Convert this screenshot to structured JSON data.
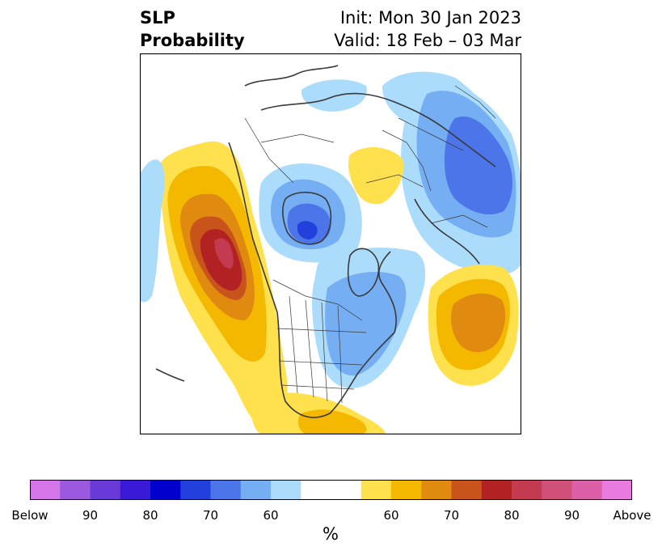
{
  "header": {
    "title_line1": "SLP",
    "title_line2": "Probability",
    "init_text": "Init: Mon 30 Jan 2023",
    "valid_text": "Valid: 18 Feb – 03 Mar"
  },
  "map": {
    "projection": "north-polar-stereographic",
    "region": "North America / North Pacific / Arctic",
    "features": [
      "coastlines",
      "country-borders",
      "us-state-borders",
      "canadian-province-borders"
    ],
    "anomalies": [
      {
        "area": "Gulf of Alaska / NE Pacific",
        "category": "Above",
        "peak_percent": 80
      },
      {
        "area": "Hudson Bay",
        "category": "Below",
        "peak_percent": 70
      },
      {
        "area": "Siberia / East Asia",
        "category": "Below",
        "peak_percent": 70
      },
      {
        "area": "North Atlantic (mid-latitude)",
        "category": "Above",
        "peak_percent": 70
      },
      {
        "area": "Western Russia / Scandinavia",
        "category": "Above",
        "peak_percent": 60
      },
      {
        "area": "Southeastern US / Gulf of Mexico",
        "category": "Above",
        "peak_percent": 60
      },
      {
        "area": "Eastern Canada / NW Atlantic",
        "category": "Below",
        "peak_percent": 60
      }
    ]
  },
  "colorbar": {
    "unit": "%",
    "colors": [
      "#d576e8",
      "#9b59e0",
      "#6a3ad8",
      "#3a1ad6",
      "#0000cc",
      "#2240db",
      "#4b75e8",
      "#75aef2",
      "#acdcfb",
      "#ffffff",
      "#ffe14d",
      "#f4b800",
      "#e08a10",
      "#c8541c",
      "#b22222",
      "#c43a50",
      "#d0507a",
      "#dc60a8",
      "#e97ae0"
    ],
    "weights": [
      1,
      1,
      1,
      1,
      1,
      1,
      1,
      1,
      1,
      2,
      1,
      1,
      1,
      1,
      1,
      1,
      1,
      1,
      1
    ],
    "ticks": [
      {
        "label": "Below",
        "boundary": 0
      },
      {
        "label": "90",
        "boundary": 2
      },
      {
        "label": "80",
        "boundary": 4
      },
      {
        "label": "70",
        "boundary": 6
      },
      {
        "label": "60",
        "boundary": 8
      },
      {
        "label": "60",
        "boundary": 12
      },
      {
        "label": "70",
        "boundary": 14
      },
      {
        "label": "80",
        "boundary": 16
      },
      {
        "label": "90",
        "boundary": 18
      },
      {
        "label": "Above",
        "boundary": 20
      }
    ]
  }
}
